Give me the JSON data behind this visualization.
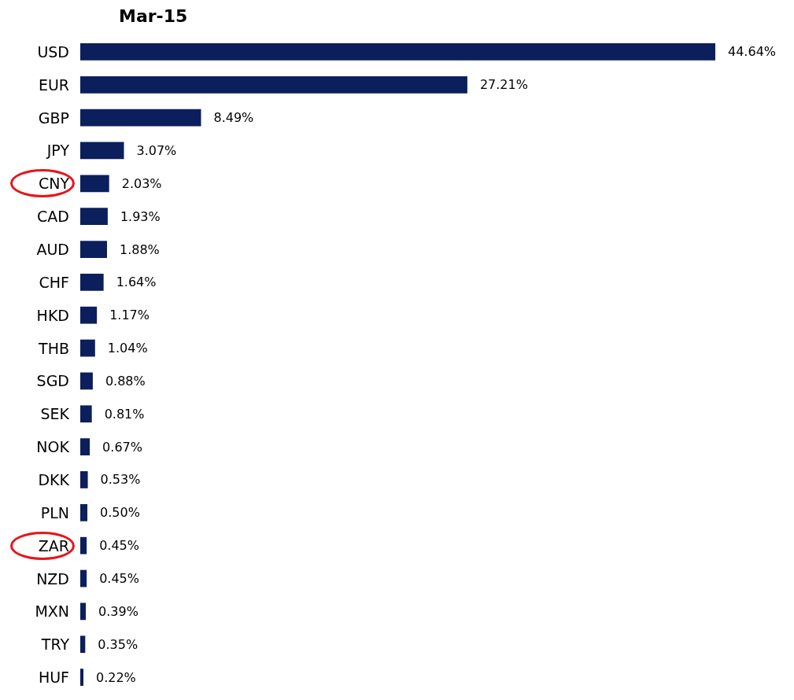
{
  "chart_data": {
    "type": "bar",
    "orientation": "horizontal",
    "title": "Mar-15",
    "categories": [
      "USD",
      "EUR",
      "GBP",
      "JPY",
      "CNY",
      "CAD",
      "AUD",
      "CHF",
      "HKD",
      "THB",
      "SGD",
      "SEK",
      "NOK",
      "DKK",
      "PLN",
      "ZAR",
      "NZD",
      "MXN",
      "TRY",
      "HUF"
    ],
    "values": [
      44.64,
      27.21,
      8.49,
      3.07,
      2.03,
      1.93,
      1.88,
      1.64,
      1.17,
      1.04,
      0.88,
      0.81,
      0.67,
      0.53,
      0.5,
      0.45,
      0.45,
      0.39,
      0.35,
      0.22
    ],
    "value_labels": [
      "44.64%",
      "27.21%",
      "8.49%",
      "3.07%",
      "2.03%",
      "1.93%",
      "1.88%",
      "1.64%",
      "1.17%",
      "1.04%",
      "0.88%",
      "0.81%",
      "0.67%",
      "0.53%",
      "0.50%",
      "0.45%",
      "0.45%",
      "0.39%",
      "0.35%",
      "0.22%"
    ],
    "color": "#0b1f5c"
  }
}
